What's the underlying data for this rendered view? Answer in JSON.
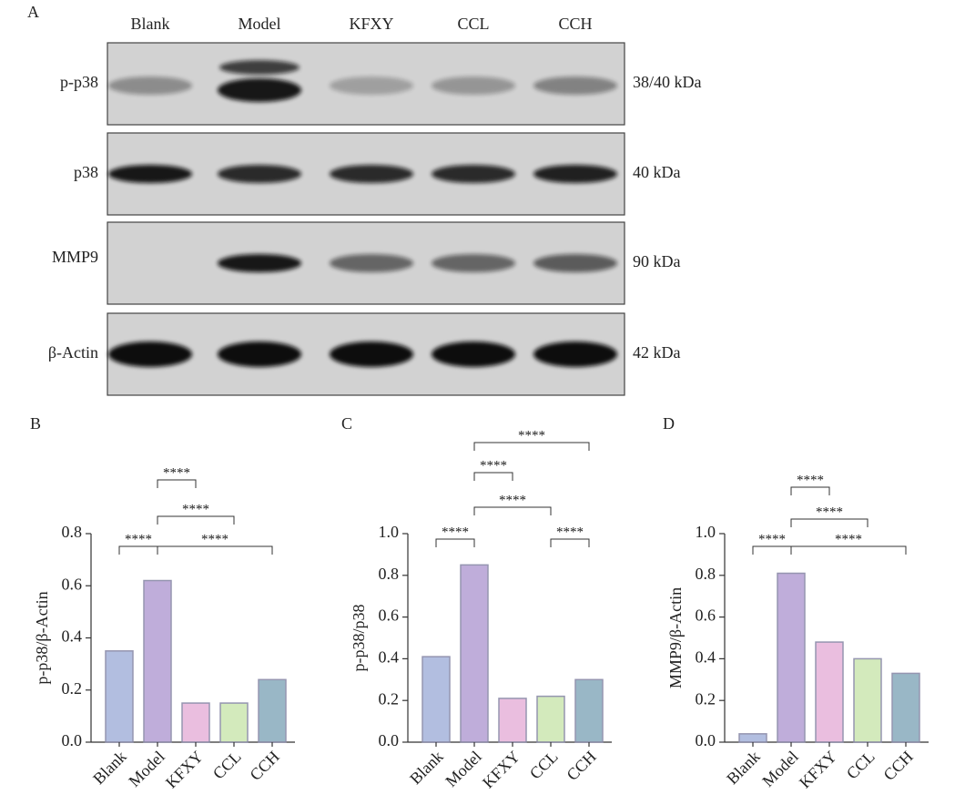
{
  "blot": {
    "panel": "A",
    "lanes": [
      "Blank",
      "Model",
      "KFXY",
      "CCL",
      "CCH"
    ],
    "rows": [
      {
        "label": "p-p38",
        "size": "38/40 kDa"
      },
      {
        "label": "p38",
        "size": "40 kDa"
      },
      {
        "label": "MMP9",
        "size": "90 kDa"
      },
      {
        "label": "β-Actin",
        "size": "42 kDa"
      }
    ]
  },
  "chart_data": [
    {
      "type": "bar",
      "panel": "B",
      "y_label": "p-p38/β-Actin",
      "categories": [
        "Blank",
        "Model",
        "KFXY",
        "CCL",
        "CCH"
      ],
      "values": [
        0.35,
        0.62,
        0.15,
        0.15,
        0.24
      ],
      "colors": [
        "#aab8dd",
        "#b9a5d6",
        "#e8b8dc",
        "#cfe8b5",
        "#8fb0c0"
      ],
      "ylim": [
        0,
        0.8
      ],
      "yticks": [
        {
          "value": 0,
          "label": "0.0"
        },
        0.2,
        0.4,
        0.6,
        0.8
      ],
      "annotations": [
        {
          "text": "****",
          "from": "Blank",
          "to": "Model"
        },
        {
          "text": "****",
          "from": "Model",
          "to": "KFXY"
        },
        {
          "text": "****",
          "from": "Model",
          "to": "CCL"
        },
        {
          "text": "****",
          "from": "Model",
          "to": "CCH"
        }
      ]
    },
    {
      "type": "bar",
      "panel": "C",
      "y_label": "p-p38/p38",
      "categories": [
        "Blank",
        "Model",
        "KFXY",
        "CCL",
        "CCH"
      ],
      "values": [
        0.41,
        0.85,
        0.21,
        0.22,
        0.3
      ],
      "colors": [
        "#aab8dd",
        "#b9a5d6",
        "#e8b8dc",
        "#cfe8b5",
        "#8fb0c0"
      ],
      "ylim": [
        0,
        1
      ],
      "yticks": [
        {
          "value": 0,
          "label": "0.0"
        },
        0.2,
        0.4,
        0.6,
        0.8,
        {
          "value": 1,
          "label": "1.0"
        }
      ],
      "annotations": [
        {
          "text": "****",
          "from": "Blank",
          "to": "Model"
        },
        {
          "text": "****",
          "from": "Model",
          "to": "KFXY"
        },
        {
          "text": "****",
          "from": "Model",
          "to": "CCL"
        },
        {
          "text": "****",
          "from": "Model",
          "to": "CCH"
        },
        {
          "text": "****",
          "from": "CCL",
          "to": "CCH"
        }
      ]
    },
    {
      "type": "bar",
      "panel": "D",
      "y_label": "MMP9/β-Actin",
      "categories": [
        "Blank",
        "Model",
        "KFXY",
        "CCL",
        "CCH"
      ],
      "values": [
        0.04,
        0.81,
        0.48,
        0.4,
        0.33
      ],
      "colors": [
        "#aab8dd",
        "#b9a5d6",
        "#e8b8dc",
        "#cfe8b5",
        "#8fb0c0"
      ],
      "ylim": [
        0,
        1
      ],
      "yticks": [
        {
          "value": 0,
          "label": "0.0"
        },
        0.2,
        0.4,
        0.6,
        0.8,
        {
          "value": 1,
          "label": "1.0"
        }
      ],
      "annotations": [
        {
          "text": "****",
          "from": "Blank",
          "to": "Model"
        },
        {
          "text": "****",
          "from": "Model",
          "to": "KFXY"
        },
        {
          "text": "****",
          "from": "Model",
          "to": "CCL"
        },
        {
          "text": "****",
          "from": "Model",
          "to": "CCH"
        }
      ]
    }
  ]
}
